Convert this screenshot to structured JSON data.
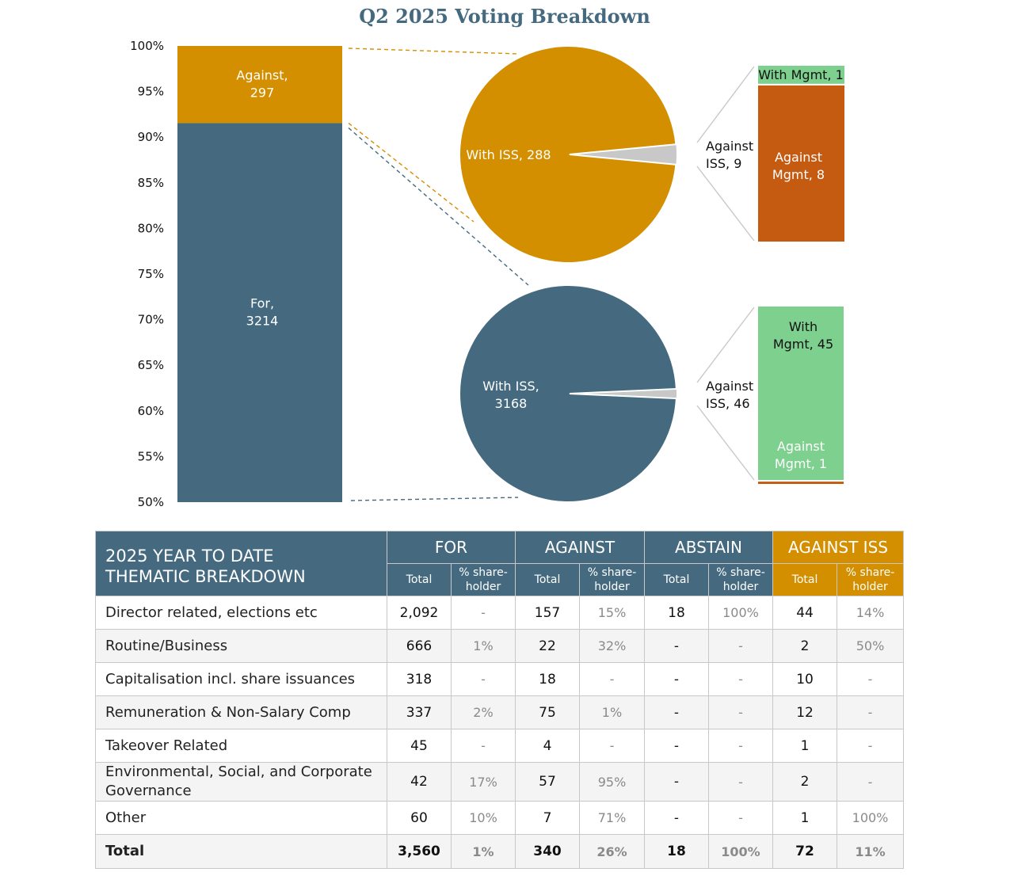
{
  "chart_data": {
    "type": "bar-of-pie",
    "title": "Q2 2025 Voting Breakdown",
    "stacked_bar": {
      "yticks": [
        "100%",
        "95%",
        "90%",
        "85%",
        "80%",
        "75%",
        "70%",
        "65%",
        "60%",
        "55%",
        "50%"
      ],
      "ylim": [
        50,
        100
      ],
      "segments": [
        {
          "name": "For",
          "label": "For,",
          "value": 3214,
          "value_label": "3214",
          "color": "#456a80"
        },
        {
          "name": "Against",
          "label": "Against,",
          "value": 297,
          "value_label": "297",
          "color": "#d38f00"
        }
      ]
    },
    "pies": [
      {
        "of": "Against",
        "color": "#d38f00",
        "slices": [
          {
            "label": "With ISS, 288",
            "value": 288,
            "color": "#d38f00"
          },
          {
            "label_lines": [
              "Against",
              "ISS, 9"
            ],
            "value": 9,
            "color": "#c8c8c8"
          }
        ],
        "breakdown_bar": [
          {
            "label_lines": [
              "With Mgmt, 1"
            ],
            "value": 1,
            "color": "#7ed08f"
          },
          {
            "label_lines": [
              "Against",
              "Mgmt, 8"
            ],
            "value": 8,
            "color": "#c55a11"
          }
        ]
      },
      {
        "of": "For",
        "color": "#456a80",
        "slices": [
          {
            "label_lines": [
              "With ISS,",
              "3168"
            ],
            "value": 3168,
            "color": "#456a80"
          },
          {
            "label_lines": [
              "Against",
              "ISS, 46"
            ],
            "value": 46,
            "color": "#c8c8c8"
          }
        ],
        "breakdown_bar": [
          {
            "label_lines": [
              "With",
              "Mgmt, 45"
            ],
            "value": 45,
            "color": "#7ed08f"
          },
          {
            "label_lines": [
              "Against",
              "Mgmt, 1"
            ],
            "value": 1,
            "color": "#c55a11"
          }
        ]
      }
    ]
  },
  "table": {
    "title_lines": [
      "2025 YEAR TO DATE",
      "THEMATIC BREAKDOWN"
    ],
    "groups": [
      "FOR",
      "AGAINST",
      "ABSTAIN",
      "AGAINST ISS"
    ],
    "sub_total": "Total",
    "sub_pct_lines": [
      "% share-",
      "holder"
    ],
    "rows": [
      {
        "category": "Director related, elections etc",
        "values": [
          "2,092",
          "-",
          "157",
          "15%",
          "18",
          "100%",
          "44",
          "14%"
        ]
      },
      {
        "category": "Routine/Business",
        "values": [
          "666",
          "1%",
          "22",
          "32%",
          "-",
          "-",
          "2",
          "50%"
        ]
      },
      {
        "category": "Capitalisation incl. share issuances",
        "values": [
          "318",
          "-",
          "18",
          "-",
          "-",
          "-",
          "10",
          "-"
        ]
      },
      {
        "category": "Remuneration & Non-Salary Comp",
        "values": [
          "337",
          "2%",
          "75",
          "1%",
          "-",
          "-",
          "12",
          "-"
        ]
      },
      {
        "category": "Takeover Related",
        "values": [
          "45",
          "-",
          "4",
          "-",
          "-",
          "-",
          "1",
          "-"
        ]
      },
      {
        "category": "Environmental, Social, and Corporate Governance",
        "values": [
          "42",
          "17%",
          "57",
          "95%",
          "-",
          "-",
          "2",
          "-"
        ]
      },
      {
        "category": "Other",
        "values": [
          "60",
          "10%",
          "7",
          "71%",
          "-",
          "-",
          "1",
          "100%"
        ]
      }
    ],
    "total": {
      "category": "Total",
      "values": [
        "3,560",
        "1%",
        "340",
        "26%",
        "18",
        "100%",
        "72",
        "11%"
      ]
    }
  }
}
